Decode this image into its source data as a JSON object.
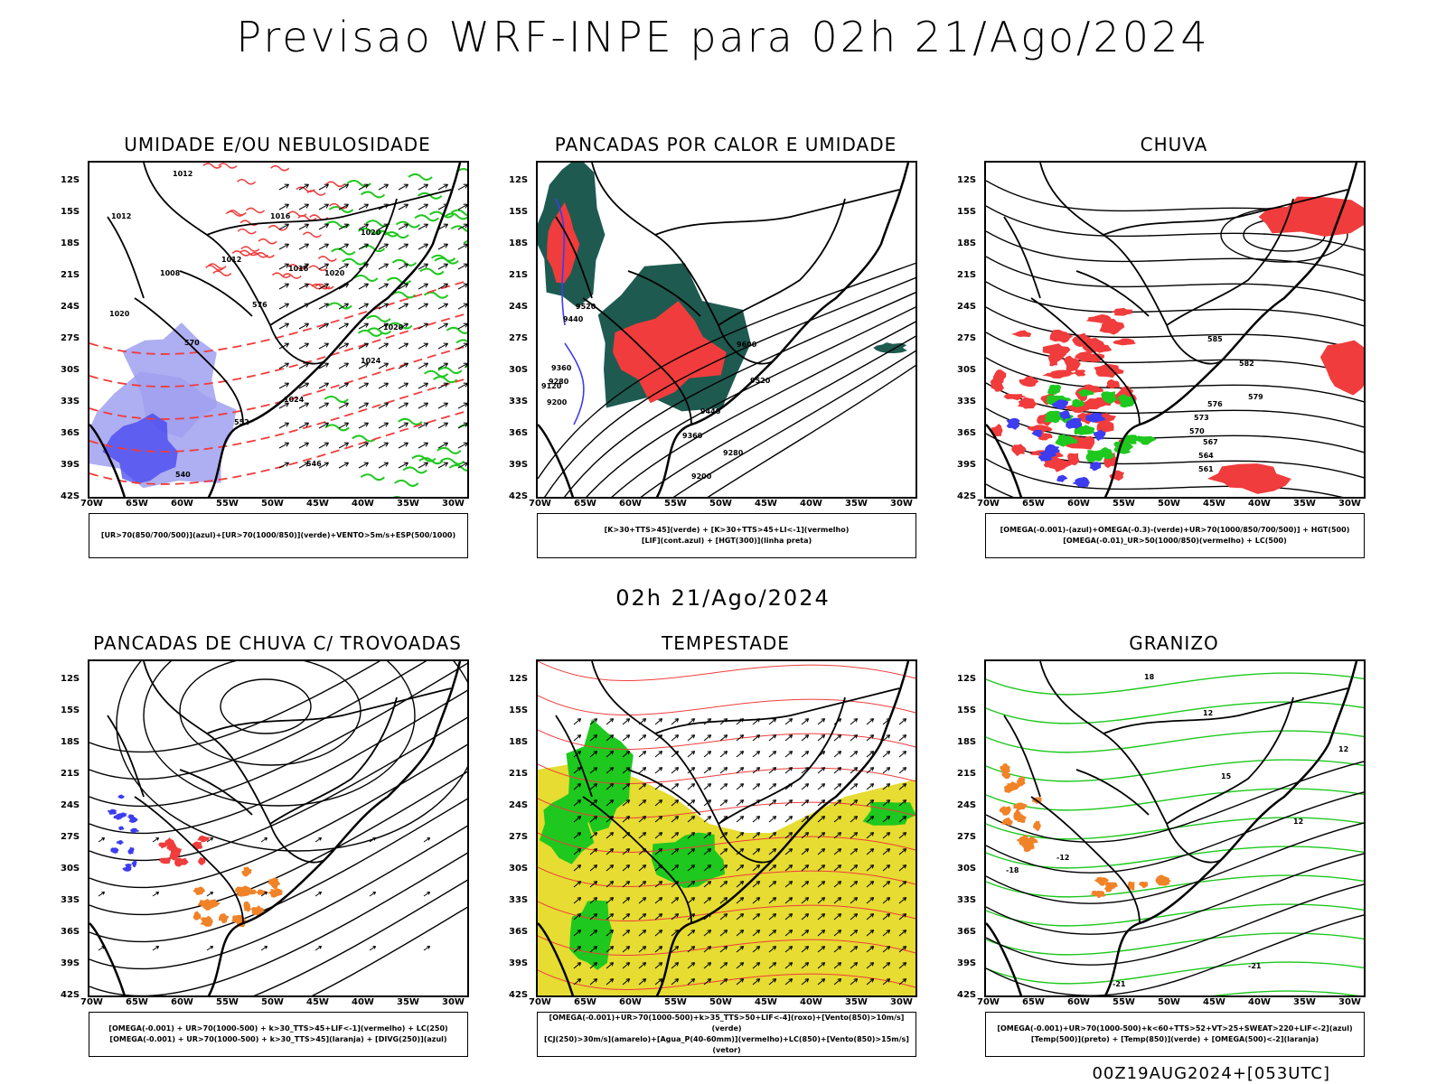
{
  "title": "Previsao WRF-INPE  para 02h 21/Ago/2024",
  "subtitle": "02h 21/Ago/2024",
  "footer": "00Z19AUG2024+[053UTC]",
  "lat_labels": [
    "12S",
    "15S",
    "18S",
    "21S",
    "24S",
    "27S",
    "30S",
    "33S",
    "36S",
    "39S",
    "42S"
  ],
  "lon_labels": [
    "70W",
    "65W",
    "60W",
    "55W",
    "50W",
    "45W",
    "40W",
    "35W",
    "30W"
  ],
  "panels": [
    {
      "title": "UMIDADE E/OU NEBULOSIDADE",
      "legend": [
        "[UR>70(850/700/500)](azul)+[UR>70(1000/850)](verde)+VENTO>5m/s+ESP(500/1000)"
      ],
      "contour_labels": [
        "1012",
        "1012",
        "1016",
        "1020",
        "1008",
        "1012",
        "1016",
        "1020",
        "1020",
        "1024",
        "1024",
        "1020",
        "570",
        "576",
        "552",
        "546",
        "540"
      ]
    },
    {
      "title": "PANCADAS POR CALOR E UMIDADE",
      "legend": [
        "[K>30+TTS>45](verde) + [K>30+TTS>45+LI<-1](vermelho)",
        "[LIF](cont.azul) + [HGT(300)](linha preta)"
      ],
      "contour_labels": [
        "9600",
        "9520",
        "9440",
        "9360",
        "9280",
        "9200",
        "9520",
        "9440",
        "9360",
        "9280",
        "9200",
        "9120"
      ]
    },
    {
      "title": "CHUVA",
      "legend": [
        "[OMEGA(-0.001)-(azul)+OMEGA(-0.3)-(verde)+UR>70(1000/850/700/500)] + HGT(500)",
        "[OMEGA(-0.01)_UR>50(1000/850)(vermelho) + LC(500)"
      ],
      "contour_labels": [
        "585",
        "582",
        "579",
        "576",
        "573",
        "570",
        "567",
        "564",
        "561"
      ]
    },
    {
      "title": "PANCADAS DE CHUVA C/ TROVOADAS",
      "legend": [
        "[OMEGA(-0.001) + UR>70(1000-500) + k>30_TTS>45+LIF<-1](vermelho) + LC(250)",
        "[OMEGA(-0.001) + UR>70(1000-500) + k>30_TTS>45](laranja) + [DIVG(250)](azul)"
      ],
      "contour_labels": []
    },
    {
      "title": "TEMPESTADE",
      "legend": [
        "[OMEGA(-0.001)+UR>70(1000-500)+k>35_TTS>50+LIF<-4](roxo)+[Vento(850)>10m/s](verde)",
        "[CJ(250)>30m/s](amarelo)+[Agua_P(40-60mm)](vermelho)+LC(850)+[Vento(850)>15m/s](vetor)"
      ],
      "contour_labels": []
    },
    {
      "title": "GRANIZO",
      "legend": [
        "[OMEGA(-0.001)+UR>70(1000-500)+k<60+TTS>52+VT>25+SWEAT>220+LIF<-2](azul)",
        "[Temp(500)](preto) + [Temp(850)](verde) + [OMEGA(500)<-2](laranja)"
      ],
      "contour_labels": [
        "-12",
        "-18",
        "-21",
        "-21",
        "12",
        "15",
        "18",
        "12",
        "12"
      ]
    }
  ],
  "colors": {
    "red": "#f03c3c",
    "green": "#1ec81e",
    "blue": "#3c3cf0",
    "lightblue": "#a0a0f0",
    "yellow": "#e6dc32",
    "darkgreen": "#1e5a50",
    "orange": "#f08228"
  }
}
